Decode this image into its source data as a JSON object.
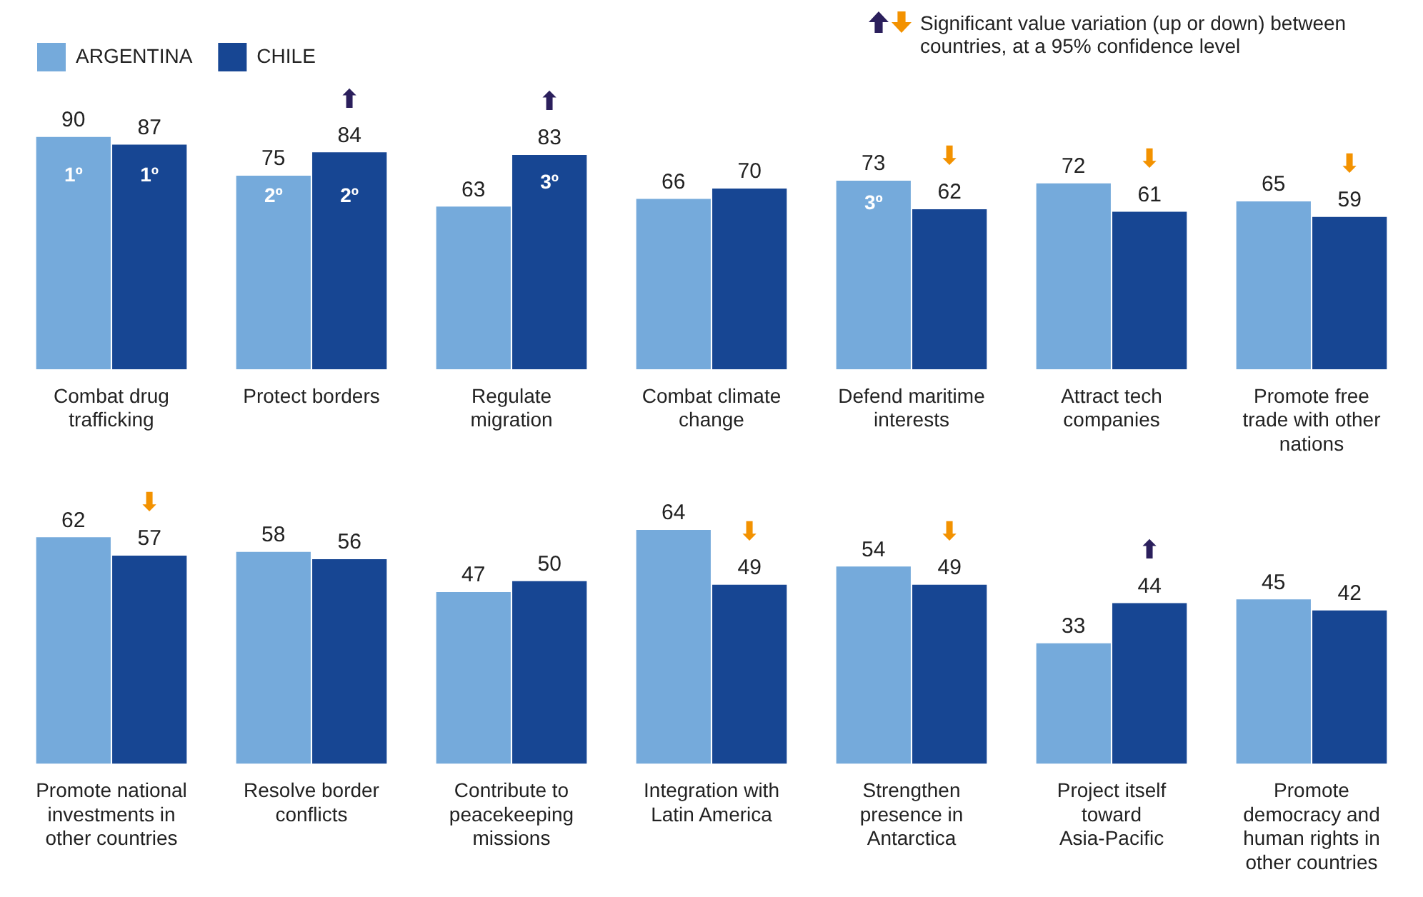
{
  "chart_data": [
    {
      "type": "bar",
      "categories": [
        "Combat drug trafficking",
        "Protect borders",
        "Regulate migration",
        "Combat climate change",
        "Defend maritime interests",
        "Attract tech companies",
        "Promote free trade with other nations"
      ],
      "series": [
        {
          "name": "ARGENTINA",
          "color": "#75aadb",
          "values": [
            90,
            75,
            63,
            66,
            73,
            72,
            65
          ]
        },
        {
          "name": "CHILE",
          "color": "#174693",
          "values": [
            87,
            84,
            83,
            70,
            62,
            61,
            59
          ]
        }
      ],
      "data_labels": true,
      "legend": "top left",
      "annotations": [
        "Significant value variation (up or down) between countries, at a 95% confidence level",
        {
          "text": "1º",
          "x": "Combat drug trafficking",
          "y": 75
        },
        {
          "text": "1º",
          "x": "Combat drug trafficking",
          "y": 75
        },
        {
          "text": "2º",
          "x": "Protect borders",
          "y": 67
        },
        {
          "text": "2º",
          "x": "Protect borders",
          "y": 67
        },
        {
          "text": "3º",
          "x": "Regulate migration",
          "y": 72
        },
        {
          "text": "3º",
          "x": "Defend maritime interests",
          "y": 64
        },
        {
          "text": "⬆",
          "x": "Protect borders",
          "y": 84
        },
        {
          "text": "⬆",
          "x": "Regulate migration",
          "y": 83
        },
        {
          "text": "⬇",
          "x": "Defend maritime interests",
          "y": 62
        },
        {
          "text": "⬇",
          "x": "Attract tech companies",
          "y": 61
        },
        {
          "text": "⬇",
          "x": "Promote free trade with other nations",
          "y": 59
        }
      ]
    },
    {
      "type": "bar",
      "categories": [
        "Promote national investments in other countries",
        "Resolve border conflicts",
        "Contribute to peacekeeping missions",
        "Integration with Latin America",
        "Strengthen presence in Antarctica",
        "Project itself toward Asia-Pacific",
        "Promote democracy and human rights in other countries"
      ],
      "series": [
        {
          "color": "#75aadb",
          "values": [
            62,
            58,
            47,
            64,
            54,
            33,
            45
          ]
        },
        {
          "color": "#174693",
          "values": [
            57,
            56,
            50,
            49,
            49,
            44,
            42
          ]
        }
      ],
      "data_labels": true,
      "annotations": [
        {
          "text": "⬇",
          "x": "Promote national investments in other countries",
          "y": 57
        },
        {
          "text": "⬇",
          "x": "Integration with Latin America",
          "y": 49
        },
        {
          "text": "⬇",
          "x": "Strengthen presence in Antarctica",
          "y": 49
        },
        {
          "text": "⬆",
          "x": "Project itself toward Asia-Pacific",
          "y": 44
        }
      ]
    }
  ]
}
